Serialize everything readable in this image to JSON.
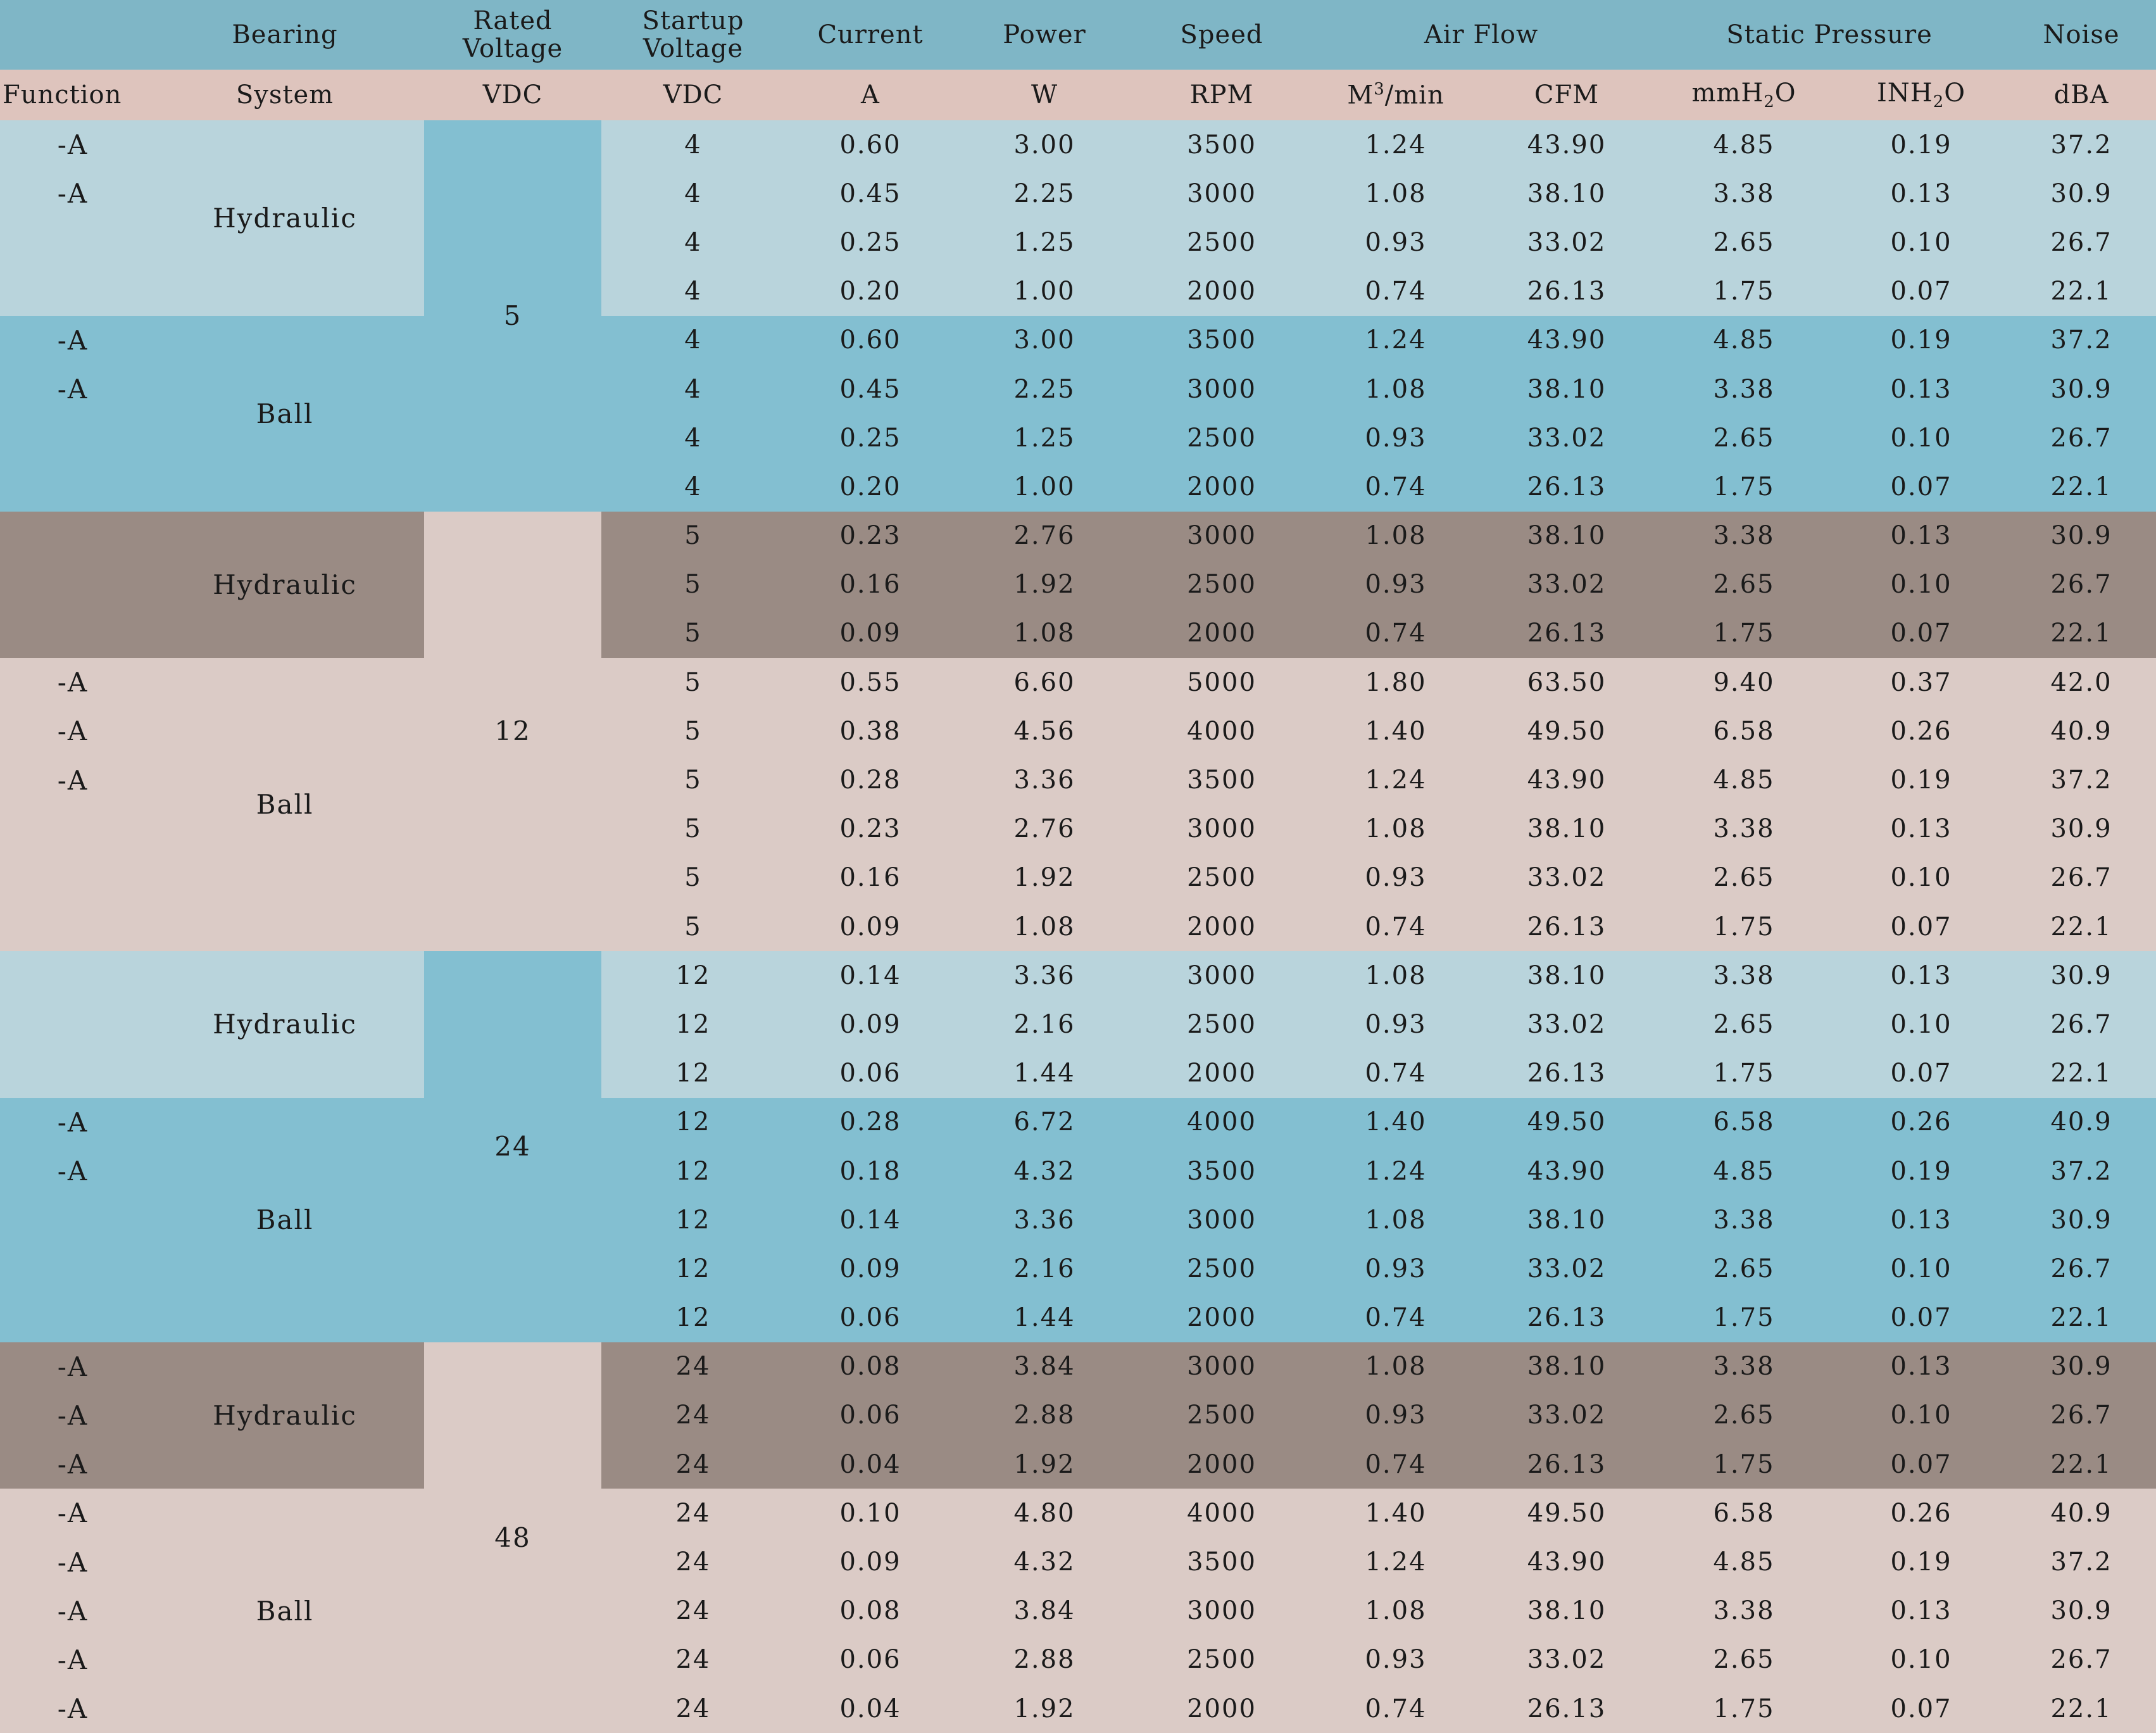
{
  "header": {
    "row1": {
      "bearing": "Bearing",
      "rated_voltage": [
        "Rated",
        "Voltage"
      ],
      "startup_voltage": [
        "Startup",
        "Voltage"
      ],
      "current": "Current",
      "power": "Power",
      "speed": "Speed",
      "air_flow": "Air Flow",
      "static_pressure": "Static Pressure",
      "noise": "Noise"
    },
    "row2": {
      "function": "Function",
      "system": "System",
      "rated_unit": "VDC",
      "startup_unit": "VDC",
      "current_unit": "A",
      "power_unit": "W",
      "speed_unit": "RPM",
      "airflow_m3_unit_base": "M",
      "airflow_m3_unit_sup": "3",
      "airflow_m3_unit_tail": "/min",
      "airflow_cfm_unit": "CFM",
      "pressure_mm_base": "mmH",
      "pressure_mm_sub": "2",
      "pressure_mm_tail": "O",
      "pressure_in_base": "INH",
      "pressure_in_sub": "2",
      "pressure_in_tail": "O",
      "noise_unit": "dBA"
    }
  },
  "groups": {
    "g1": {
      "rated": "5",
      "hyd_label": "Hydraulic",
      "ball_label": "Ball",
      "hyd_rows": [
        {
          "func": "-A",
          "sv": "4",
          "a": "0.60",
          "w": "3.00",
          "rpm": "3500",
          "m3": "1.24",
          "cfm": "43.90",
          "mm": "4.85",
          "in": "0.19",
          "dba": "37.2"
        },
        {
          "func": "-A",
          "sv": "4",
          "a": "0.45",
          "w": "2.25",
          "rpm": "3000",
          "m3": "1.08",
          "cfm": "38.10",
          "mm": "3.38",
          "in": "0.13",
          "dba": "30.9"
        },
        {
          "func": "",
          "sv": "4",
          "a": "0.25",
          "w": "1.25",
          "rpm": "2500",
          "m3": "0.93",
          "cfm": "33.02",
          "mm": "2.65",
          "in": "0.10",
          "dba": "26.7"
        },
        {
          "func": "",
          "sv": "4",
          "a": "0.20",
          "w": "1.00",
          "rpm": "2000",
          "m3": "0.74",
          "cfm": "26.13",
          "mm": "1.75",
          "in": "0.07",
          "dba": "22.1"
        }
      ],
      "ball_rows": [
        {
          "func": "-A",
          "sv": "4",
          "a": "0.60",
          "w": "3.00",
          "rpm": "3500",
          "m3": "1.24",
          "cfm": "43.90",
          "mm": "4.85",
          "in": "0.19",
          "dba": "37.2"
        },
        {
          "func": "-A",
          "sv": "4",
          "a": "0.45",
          "w": "2.25",
          "rpm": "3000",
          "m3": "1.08",
          "cfm": "38.10",
          "mm": "3.38",
          "in": "0.13",
          "dba": "30.9"
        },
        {
          "func": "",
          "sv": "4",
          "a": "0.25",
          "w": "1.25",
          "rpm": "2500",
          "m3": "0.93",
          "cfm": "33.02",
          "mm": "2.65",
          "in": "0.10",
          "dba": "26.7"
        },
        {
          "func": "",
          "sv": "4",
          "a": "0.20",
          "w": "1.00",
          "rpm": "2000",
          "m3": "0.74",
          "cfm": "26.13",
          "mm": "1.75",
          "in": "0.07",
          "dba": "22.1"
        }
      ]
    },
    "g2": {
      "rated": "12",
      "hyd_label": "Hydraulic",
      "ball_label": "Ball",
      "hyd_rows": [
        {
          "func": "",
          "sv": "5",
          "a": "0.23",
          "w": "2.76",
          "rpm": "3000",
          "m3": "1.08",
          "cfm": "38.10",
          "mm": "3.38",
          "in": "0.13",
          "dba": "30.9"
        },
        {
          "func": "",
          "sv": "5",
          "a": "0.16",
          "w": "1.92",
          "rpm": "2500",
          "m3": "0.93",
          "cfm": "33.02",
          "mm": "2.65",
          "in": "0.10",
          "dba": "26.7"
        },
        {
          "func": "",
          "sv": "5",
          "a": "0.09",
          "w": "1.08",
          "rpm": "2000",
          "m3": "0.74",
          "cfm": "26.13",
          "mm": "1.75",
          "in": "0.07",
          "dba": "22.1"
        }
      ],
      "ball_rows": [
        {
          "func": "-A",
          "sv": "5",
          "a": "0.55",
          "w": "6.60",
          "rpm": "5000",
          "m3": "1.80",
          "cfm": "63.50",
          "mm": "9.40",
          "in": "0.37",
          "dba": "42.0"
        },
        {
          "func": "-A",
          "sv": "5",
          "a": "0.38",
          "w": "4.56",
          "rpm": "4000",
          "m3": "1.40",
          "cfm": "49.50",
          "mm": "6.58",
          "in": "0.26",
          "dba": "40.9"
        },
        {
          "func": "-A",
          "sv": "5",
          "a": "0.28",
          "w": "3.36",
          "rpm": "3500",
          "m3": "1.24",
          "cfm": "43.90",
          "mm": "4.85",
          "in": "0.19",
          "dba": "37.2"
        },
        {
          "func": "",
          "sv": "5",
          "a": "0.23",
          "w": "2.76",
          "rpm": "3000",
          "m3": "1.08",
          "cfm": "38.10",
          "mm": "3.38",
          "in": "0.13",
          "dba": "30.9"
        },
        {
          "func": "",
          "sv": "5",
          "a": "0.16",
          "w": "1.92",
          "rpm": "2500",
          "m3": "0.93",
          "cfm": "33.02",
          "mm": "2.65",
          "in": "0.10",
          "dba": "26.7"
        },
        {
          "func": "",
          "sv": "5",
          "a": "0.09",
          "w": "1.08",
          "rpm": "2000",
          "m3": "0.74",
          "cfm": "26.13",
          "mm": "1.75",
          "in": "0.07",
          "dba": "22.1"
        }
      ]
    },
    "g3": {
      "rated": "24",
      "hyd_label": "Hydraulic",
      "ball_label": "Ball",
      "hyd_rows": [
        {
          "func": "",
          "sv": "12",
          "a": "0.14",
          "w": "3.36",
          "rpm": "3000",
          "m3": "1.08",
          "cfm": "38.10",
          "mm": "3.38",
          "in": "0.13",
          "dba": "30.9"
        },
        {
          "func": "",
          "sv": "12",
          "a": "0.09",
          "w": "2.16",
          "rpm": "2500",
          "m3": "0.93",
          "cfm": "33.02",
          "mm": "2.65",
          "in": "0.10",
          "dba": "26.7"
        },
        {
          "func": "",
          "sv": "12",
          "a": "0.06",
          "w": "1.44",
          "rpm": "2000",
          "m3": "0.74",
          "cfm": "26.13",
          "mm": "1.75",
          "in": "0.07",
          "dba": "22.1"
        }
      ],
      "ball_rows": [
        {
          "func": "-A",
          "sv": "12",
          "a": "0.28",
          "w": "6.72",
          "rpm": "4000",
          "m3": "1.40",
          "cfm": "49.50",
          "mm": "6.58",
          "in": "0.26",
          "dba": "40.9"
        },
        {
          "func": "-A",
          "sv": "12",
          "a": "0.18",
          "w": "4.32",
          "rpm": "3500",
          "m3": "1.24",
          "cfm": "43.90",
          "mm": "4.85",
          "in": "0.19",
          "dba": "37.2"
        },
        {
          "func": "",
          "sv": "12",
          "a": "0.14",
          "w": "3.36",
          "rpm": "3000",
          "m3": "1.08",
          "cfm": "38.10",
          "mm": "3.38",
          "in": "0.13",
          "dba": "30.9"
        },
        {
          "func": "",
          "sv": "12",
          "a": "0.09",
          "w": "2.16",
          "rpm": "2500",
          "m3": "0.93",
          "cfm": "33.02",
          "mm": "2.65",
          "in": "0.10",
          "dba": "26.7"
        },
        {
          "func": "",
          "sv": "12",
          "a": "0.06",
          "w": "1.44",
          "rpm": "2000",
          "m3": "0.74",
          "cfm": "26.13",
          "mm": "1.75",
          "in": "0.07",
          "dba": "22.1"
        }
      ]
    },
    "g4": {
      "rated": "48",
      "hyd_label": "Hydraulic",
      "ball_label": "Ball",
      "hyd_rows": [
        {
          "func": "-A",
          "sv": "24",
          "a": "0.08",
          "w": "3.84",
          "rpm": "3000",
          "m3": "1.08",
          "cfm": "38.10",
          "mm": "3.38",
          "in": "0.13",
          "dba": "30.9"
        },
        {
          "func": "-A",
          "sv": "24",
          "a": "0.06",
          "w": "2.88",
          "rpm": "2500",
          "m3": "0.93",
          "cfm": "33.02",
          "mm": "2.65",
          "in": "0.10",
          "dba": "26.7"
        },
        {
          "func": "-A",
          "sv": "24",
          "a": "0.04",
          "w": "1.92",
          "rpm": "2000",
          "m3": "0.74",
          "cfm": "26.13",
          "mm": "1.75",
          "in": "0.07",
          "dba": "22.1"
        }
      ],
      "ball_rows": [
        {
          "func": "-A",
          "sv": "24",
          "a": "0.10",
          "w": "4.80",
          "rpm": "4000",
          "m3": "1.40",
          "cfm": "49.50",
          "mm": "6.58",
          "in": "0.26",
          "dba": "40.9"
        },
        {
          "func": "-A",
          "sv": "24",
          "a": "0.09",
          "w": "4.32",
          "rpm": "3500",
          "m3": "1.24",
          "cfm": "43.90",
          "mm": "4.85",
          "in": "0.19",
          "dba": "37.2"
        },
        {
          "func": "-A",
          "sv": "24",
          "a": "0.08",
          "w": "3.84",
          "rpm": "3000",
          "m3": "1.08",
          "cfm": "38.10",
          "mm": "3.38",
          "in": "0.13",
          "dba": "30.9"
        },
        {
          "func": "-A",
          "sv": "24",
          "a": "0.06",
          "w": "2.88",
          "rpm": "2500",
          "m3": "0.93",
          "cfm": "33.02",
          "mm": "2.65",
          "in": "0.10",
          "dba": "26.7"
        },
        {
          "func": "-A",
          "sv": "24",
          "a": "0.04",
          "w": "1.92",
          "rpm": "2000",
          "m3": "0.74",
          "cfm": "26.13",
          "mm": "1.75",
          "in": "0.07",
          "dba": "22.1"
        }
      ]
    }
  }
}
